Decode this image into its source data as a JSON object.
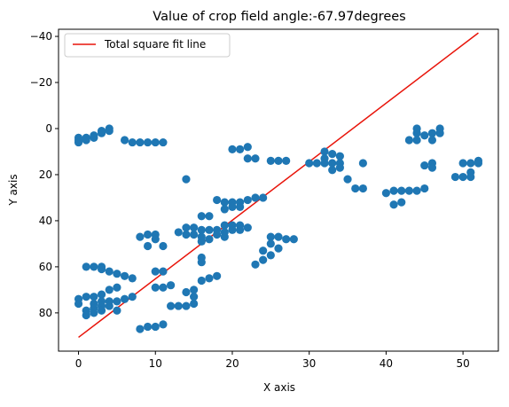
{
  "chart_data": {
    "type": "scatter",
    "title": "Value of crop field angle:-67.97degrees",
    "xlabel": "X axis",
    "ylabel": "Y axis",
    "xlim": [
      -2.6,
      54.6
    ],
    "ylim": [
      96.6,
      -43.1
    ],
    "y_inverted": true,
    "grid": false,
    "legend_position": "top-left",
    "xticks": [
      0,
      10,
      20,
      30,
      40,
      50
    ],
    "yticks": [
      -40,
      -20,
      0,
      20,
      40,
      60,
      80
    ],
    "colors": {
      "points": "#1f77b4",
      "fit_line": "#e8140a"
    },
    "fit_line": {
      "name": "Total square fit line",
      "x": [
        0,
        52
      ],
      "y": [
        90.6,
        -41.5
      ]
    },
    "points": [
      [
        0,
        4
      ],
      [
        0,
        5
      ],
      [
        0,
        6
      ],
      [
        1,
        5
      ],
      [
        1,
        4
      ],
      [
        2,
        3
      ],
      [
        2,
        4
      ],
      [
        3,
        2
      ],
      [
        3,
        1
      ],
      [
        4,
        0
      ],
      [
        4,
        1
      ],
      [
        6,
        5
      ],
      [
        7,
        6
      ],
      [
        8,
        6
      ],
      [
        9,
        6
      ],
      [
        10,
        6
      ],
      [
        11,
        6
      ],
      [
        0,
        74
      ],
      [
        0,
        76
      ],
      [
        1,
        73
      ],
      [
        1,
        79
      ],
      [
        1,
        81
      ],
      [
        1,
        60
      ],
      [
        2,
        60
      ],
      [
        2,
        73
      ],
      [
        2,
        76
      ],
      [
        2,
        78
      ],
      [
        2,
        80
      ],
      [
        3,
        60
      ],
      [
        3,
        61
      ],
      [
        3,
        72
      ],
      [
        3,
        75
      ],
      [
        3,
        77
      ],
      [
        3,
        79
      ],
      [
        4,
        62
      ],
      [
        4,
        70
      ],
      [
        4,
        75
      ],
      [
        4,
        77
      ],
      [
        5,
        63
      ],
      [
        5,
        69
      ],
      [
        5,
        75
      ],
      [
        5,
        79
      ],
      [
        6,
        64
      ],
      [
        6,
        74
      ],
      [
        7,
        65
      ],
      [
        7,
        73
      ],
      [
        8,
        47
      ],
      [
        8,
        87
      ],
      [
        9,
        46
      ],
      [
        9,
        51
      ],
      [
        9,
        86
      ],
      [
        10,
        46
      ],
      [
        10,
        48
      ],
      [
        10,
        62
      ],
      [
        10,
        69
      ],
      [
        10,
        86
      ],
      [
        11,
        51
      ],
      [
        11,
        62
      ],
      [
        11,
        69
      ],
      [
        11,
        85
      ],
      [
        12,
        68
      ],
      [
        12,
        77
      ],
      [
        13,
        45
      ],
      [
        13,
        77
      ],
      [
        14,
        22
      ],
      [
        14,
        43
      ],
      [
        14,
        46
      ],
      [
        14,
        71
      ],
      [
        14,
        77
      ],
      [
        15,
        43
      ],
      [
        15,
        46
      ],
      [
        15,
        70
      ],
      [
        15,
        73
      ],
      [
        15,
        76
      ],
      [
        16,
        38
      ],
      [
        16,
        44
      ],
      [
        16,
        47
      ],
      [
        16,
        49
      ],
      [
        16,
        56
      ],
      [
        16,
        58
      ],
      [
        16,
        66
      ],
      [
        17,
        38
      ],
      [
        17,
        44
      ],
      [
        17,
        48
      ],
      [
        17,
        65
      ],
      [
        18,
        31
      ],
      [
        18,
        44
      ],
      [
        18,
        46
      ],
      [
        18,
        64
      ],
      [
        19,
        32
      ],
      [
        19,
        35
      ],
      [
        19,
        42
      ],
      [
        19,
        45
      ],
      [
        19,
        47
      ],
      [
        20,
        9
      ],
      [
        20,
        32
      ],
      [
        20,
        34
      ],
      [
        20,
        42
      ],
      [
        20,
        44
      ],
      [
        21,
        9
      ],
      [
        21,
        32
      ],
      [
        21,
        34
      ],
      [
        21,
        42
      ],
      [
        21,
        44
      ],
      [
        22,
        8
      ],
      [
        22,
        13
      ],
      [
        22,
        31
      ],
      [
        22,
        43
      ],
      [
        23,
        13
      ],
      [
        23,
        30
      ],
      [
        23,
        59
      ],
      [
        24,
        30
      ],
      [
        24,
        53
      ],
      [
        24,
        57
      ],
      [
        25,
        14
      ],
      [
        25,
        47
      ],
      [
        25,
        50
      ],
      [
        25,
        55
      ],
      [
        26,
        14
      ],
      [
        26,
        47
      ],
      [
        26,
        52
      ],
      [
        27,
        14
      ],
      [
        27,
        48
      ],
      [
        28,
        48
      ],
      [
        30,
        15
      ],
      [
        31,
        15
      ],
      [
        32,
        10
      ],
      [
        32,
        13
      ],
      [
        32,
        15
      ],
      [
        33,
        11
      ],
      [
        33,
        15
      ],
      [
        33,
        18
      ],
      [
        34,
        12
      ],
      [
        34,
        15
      ],
      [
        34,
        17
      ],
      [
        35,
        22
      ],
      [
        36,
        26
      ],
      [
        37,
        15
      ],
      [
        37,
        26
      ],
      [
        40,
        28
      ],
      [
        41,
        27
      ],
      [
        41,
        33
      ],
      [
        42,
        27
      ],
      [
        42,
        32
      ],
      [
        43,
        5
      ],
      [
        43,
        27
      ],
      [
        44,
        0
      ],
      [
        44,
        2
      ],
      [
        44,
        5
      ],
      [
        44,
        27
      ],
      [
        45,
        3
      ],
      [
        45,
        16
      ],
      [
        45,
        26
      ],
      [
        46,
        2
      ],
      [
        46,
        5
      ],
      [
        46,
        15
      ],
      [
        46,
        17
      ],
      [
        47,
        0
      ],
      [
        47,
        2
      ],
      [
        49,
        21
      ],
      [
        50,
        15
      ],
      [
        50,
        21
      ],
      [
        51,
        15
      ],
      [
        51,
        19
      ],
      [
        51,
        21
      ],
      [
        52,
        14
      ],
      [
        52,
        15
      ]
    ]
  }
}
